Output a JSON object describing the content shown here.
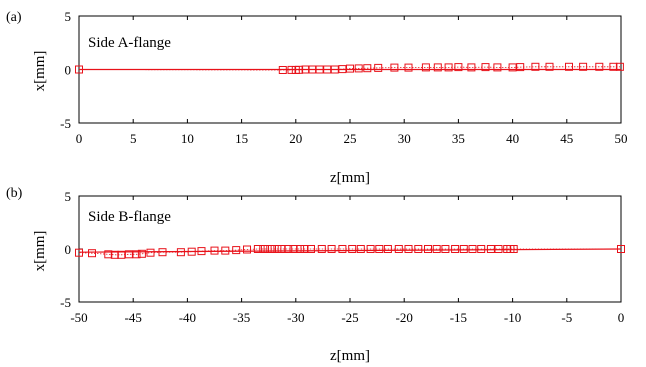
{
  "colors": {
    "series": "#e8121a",
    "axis": "#000000",
    "background": "#ffffff"
  },
  "chart_data": [
    {
      "type": "line",
      "panel_label": "(a)",
      "title": "Side A-flange",
      "xlabel": "z[mm]",
      "ylabel": "x[mm]",
      "xlim": [
        0,
        50
      ],
      "ylim": [
        -5,
        5
      ],
      "xticks": [
        "0",
        "5",
        "10",
        "15",
        "20",
        "25",
        "30",
        "35",
        "40",
        "45",
        "50"
      ],
      "yticks": [
        "5",
        "0",
        "-5"
      ],
      "grid": false,
      "markers": "open-square",
      "fit_line": {
        "x": [
          0,
          50
        ],
        "y": [
          0.0,
          0.0
        ]
      },
      "x": [
        0.0,
        18.8,
        19.6,
        20.0,
        20.3,
        20.9,
        21.5,
        22.2,
        22.9,
        23.6,
        24.3,
        25.0,
        25.8,
        26.6,
        27.6,
        29.1,
        30.4,
        32.0,
        33.1,
        34.1,
        35.0,
        36.2,
        37.5,
        38.6,
        40.0,
        40.7,
        42.1,
        43.4,
        45.2,
        46.5,
        48.0,
        49.3,
        49.9
      ],
      "y": [
        0.0,
        -0.05,
        -0.04,
        -0.05,
        -0.03,
        0.0,
        0.0,
        0.0,
        0.0,
        0.0,
        0.04,
        0.08,
        0.1,
        0.12,
        0.15,
        0.18,
        0.18,
        0.2,
        0.2,
        0.2,
        0.22,
        0.2,
        0.22,
        0.2,
        0.2,
        0.22,
        0.25,
        0.25,
        0.25,
        0.25,
        0.25,
        0.25,
        0.25
      ]
    },
    {
      "type": "line",
      "panel_label": "(b)",
      "title": "Side B-flange",
      "xlabel": "z[mm]",
      "ylabel": "x[mm]",
      "xlim": [
        -50,
        0
      ],
      "ylim": [
        -5,
        5
      ],
      "xticks": [
        "-50",
        "-45",
        "-40",
        "-35",
        "-30",
        "-25",
        "-20",
        "-15",
        "-10",
        "-5",
        "0"
      ],
      "yticks": [
        "5",
        "0",
        "-5"
      ],
      "grid": false,
      "markers": "open-square",
      "fit_line": {
        "x": [
          -50,
          0
        ],
        "y": [
          -0.3,
          0.0
        ]
      },
      "x": [
        -50.0,
        -48.8,
        -47.3,
        -46.7,
        -46.1,
        -45.4,
        -44.7,
        -44.2,
        -43.4,
        -42.3,
        -40.6,
        -39.6,
        -38.7,
        -37.5,
        -36.5,
        -35.5,
        -34.5,
        -33.5,
        -33.0,
        -32.6,
        -32.2,
        -31.7,
        -31.3,
        -30.7,
        -30.2,
        -29.6,
        -29.2,
        -28.6,
        -27.6,
        -26.7,
        -25.7,
        -24.8,
        -24.0,
        -23.1,
        -22.3,
        -21.5,
        -20.5,
        -19.6,
        -18.7,
        -17.8,
        -17.0,
        -16.2,
        -15.3,
        -14.5,
        -13.7,
        -12.9,
        -12.0,
        -11.3,
        -10.5,
        -10.2,
        -9.9,
        0.0
      ],
      "y": [
        -0.35,
        -0.4,
        -0.5,
        -0.55,
        -0.55,
        -0.5,
        -0.5,
        -0.45,
        -0.35,
        -0.3,
        -0.3,
        -0.25,
        -0.2,
        -0.15,
        -0.15,
        -0.1,
        -0.05,
        0.0,
        0.0,
        0.0,
        0.0,
        0.0,
        0.0,
        0.0,
        0.0,
        0.0,
        0.0,
        0.0,
        0.0,
        0.0,
        0.0,
        0.0,
        0.0,
        0.0,
        0.0,
        0.0,
        0.0,
        0.0,
        0.0,
        0.0,
        0.0,
        0.0,
        0.0,
        0.0,
        0.0,
        0.0,
        0.0,
        0.0,
        0.0,
        0.0,
        0.0,
        0.0
      ]
    }
  ]
}
